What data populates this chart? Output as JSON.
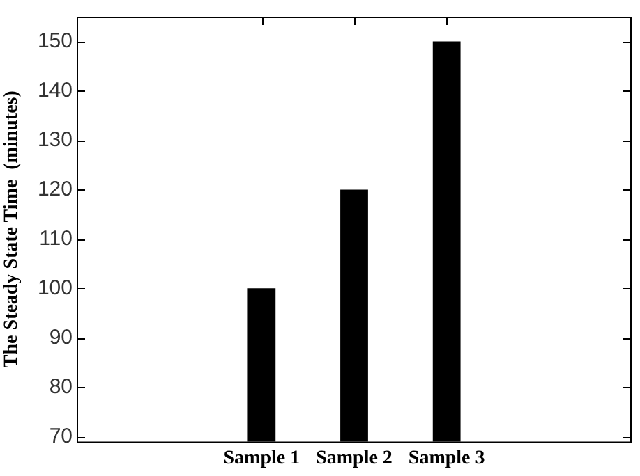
{
  "chart_data": {
    "type": "bar",
    "ylabel": "The Steady State Time  (minutes)",
    "categories": [
      "Sample 1",
      "Sample 2",
      "Sample 3"
    ],
    "values": [
      100,
      120,
      150
    ],
    "color": "#000000",
    "ylim": [
      69,
      155
    ],
    "yticks": [
      70,
      80,
      90,
      100,
      110,
      120,
      130,
      140,
      150
    ],
    "grid": false,
    "legend": false
  }
}
